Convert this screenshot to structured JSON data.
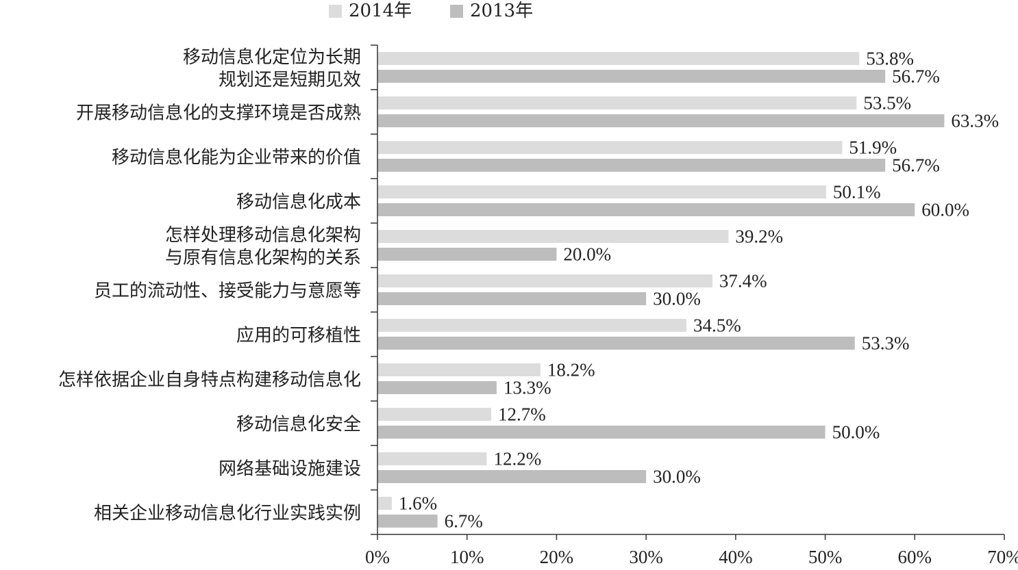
{
  "legend": [
    {
      "label": "2014年",
      "color": "#dcdcdc"
    },
    {
      "label": "2013年",
      "color": "#bdbdbd"
    }
  ],
  "chart_data": {
    "type": "bar",
    "orientation": "horizontal",
    "categories": [
      [
        "移动信息化定位为长期",
        "规划还是短期见效"
      ],
      [
        "开展移动信息化的支撑环境是否成熟"
      ],
      [
        "移动信息化能为企业带来的价值"
      ],
      [
        "移动信息化成本"
      ],
      [
        "怎样处理移动信息化架构",
        "与原有信息化架构的关系"
      ],
      [
        "员工的流动性、接受能力与意愿等"
      ],
      [
        "应用的可移植性"
      ],
      [
        "怎样依据企业自身特点构建移动信息化"
      ],
      [
        "移动信息化安全"
      ],
      [
        "网络基础设施建设"
      ],
      [
        "相关企业移动信息化行业实践实例"
      ]
    ],
    "series": [
      {
        "name": "2014年",
        "color": "#dcdcdc",
        "values": [
          53.8,
          53.5,
          51.9,
          50.1,
          39.2,
          37.4,
          34.5,
          18.2,
          12.7,
          12.2,
          1.6
        ],
        "labels": [
          "53.8%",
          "53.5%",
          "51.9%",
          "50.1%",
          "39.2%",
          "37.4%",
          "34.5%",
          "18.2%",
          "12.7%",
          "12.2%",
          "1.6%"
        ]
      },
      {
        "name": "2013年",
        "color": "#bdbdbd",
        "values": [
          56.7,
          63.3,
          56.7,
          60.0,
          20.0,
          30.0,
          53.3,
          13.3,
          50.0,
          30.0,
          6.7
        ],
        "labels": [
          "56.7%",
          "63.3%",
          "56.7%",
          "60.0%",
          "20.0%",
          "30.0%",
          "53.3%",
          "13.3%",
          "50.0%",
          "30.0%",
          "6.7%"
        ]
      }
    ],
    "xlim": [
      0,
      70
    ],
    "xticks": [
      0,
      10,
      20,
      30,
      40,
      50,
      60,
      70
    ],
    "xtick_labels": [
      "0%",
      "10%",
      "20%",
      "30%",
      "40%",
      "50%",
      "60%",
      "70%"
    ],
    "grid": false,
    "legend_position": "top-left"
  }
}
